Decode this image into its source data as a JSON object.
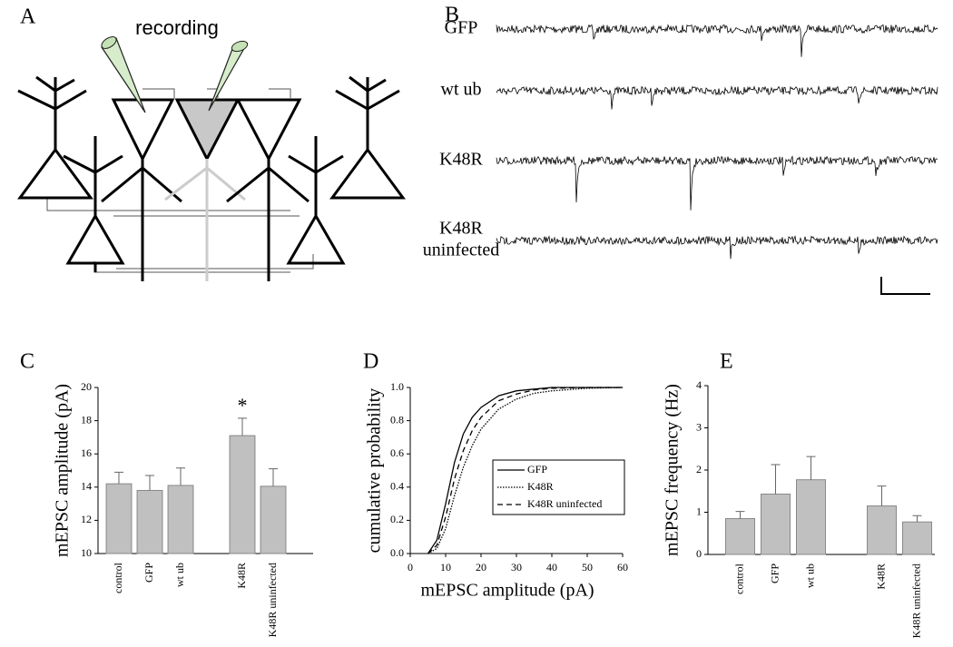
{
  "panels": {
    "A": "A",
    "B": "B"
  },
  "diagram": {
    "label": "recording"
  },
  "traces": {
    "labels": [
      [
        "GFP"
      ],
      [
        "wt ub"
      ],
      [
        "K48R"
      ],
      [
        "K48R",
        "uninfected"
      ]
    ]
  },
  "chart_data": [
    {
      "type": "bar",
      "panel": "C",
      "ylabel": "mEPSC amplitude (pA)",
      "categories": [
        "control",
        "GFP",
        "wt ub",
        null,
        "K48R",
        "K48R uninfected"
      ],
      "values": [
        14.2,
        13.8,
        14.1,
        null,
        17.1,
        14.05
      ],
      "errors": [
        0.7,
        0.9,
        1.05,
        null,
        1.05,
        1.05
      ],
      "annotations": [
        {
          "index": 4,
          "text": "*"
        }
      ],
      "color": "#c0c0c0",
      "ylim": [
        10,
        20
      ],
      "yticks": [
        10,
        12,
        14,
        16,
        18,
        20
      ]
    },
    {
      "type": "line",
      "panel": "D",
      "ylabel": "cumulative probability",
      "xlabel": "mEPSC amplitude (pA)",
      "x": [
        5,
        7.5,
        10,
        12.5,
        15,
        17.5,
        20,
        25,
        30,
        35,
        40,
        50,
        60
      ],
      "series": [
        {
          "name": "GFP",
          "color": "#000000",
          "style": "solid",
          "values": [
            0,
            0.08,
            0.3,
            0.55,
            0.72,
            0.82,
            0.88,
            0.95,
            0.98,
            0.99,
            1,
            1,
            1
          ]
        },
        {
          "name": "K48R",
          "color": "#000000",
          "style": "dotted",
          "values": [
            0,
            0.03,
            0.15,
            0.35,
            0.52,
            0.65,
            0.75,
            0.87,
            0.93,
            0.965,
            0.98,
            0.995,
            1
          ]
        },
        {
          "name": "K48R uninfected",
          "color": "#000000",
          "style": "dashed",
          "values": [
            0,
            0.05,
            0.22,
            0.45,
            0.62,
            0.74,
            0.82,
            0.92,
            0.96,
            0.985,
            0.995,
            1,
            1
          ]
        }
      ],
      "xlim": [
        0,
        60
      ],
      "xticks": [
        0,
        10,
        20,
        30,
        40,
        50,
        60
      ],
      "ylim": [
        0,
        1
      ],
      "yticks": [
        {
          "value": 0,
          "label": "0.0"
        },
        {
          "value": 0.2,
          "label": "0.2"
        },
        {
          "value": 0.4,
          "label": "0.4"
        },
        {
          "value": 0.6,
          "label": "0.6"
        },
        {
          "value": 0.8,
          "label": "0.8"
        },
        {
          "value": 1,
          "label": "1.0"
        }
      ],
      "legend": "lower right"
    },
    {
      "type": "bar",
      "panel": "E",
      "ylabel": "mEPSC frequency (Hz)",
      "categories": [
        "control",
        "GFP",
        "wt ub",
        null,
        "K48R",
        "K48R uninfected"
      ],
      "values": [
        0.85,
        1.43,
        1.77,
        null,
        1.15,
        0.77
      ],
      "errors": [
        0.17,
        0.7,
        0.55,
        null,
        0.47,
        0.15
      ],
      "color": "#c0c0c0",
      "ylim": [
        0,
        4
      ],
      "yticks": [
        0,
        1,
        2,
        3,
        4
      ]
    }
  ]
}
